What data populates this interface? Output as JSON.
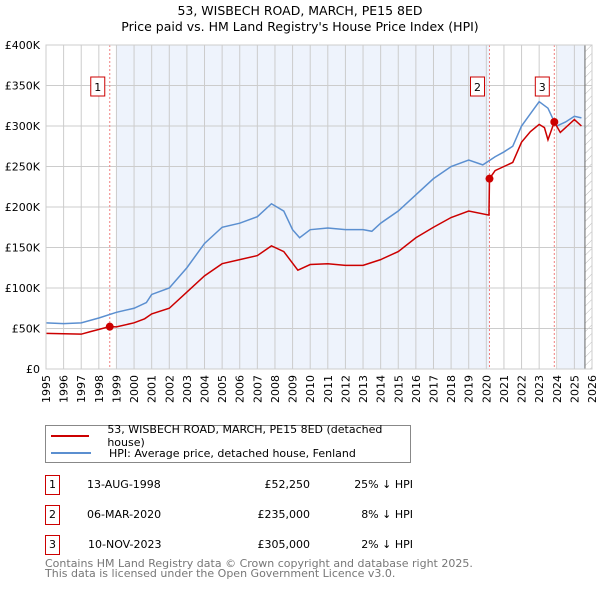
{
  "chart_data": {
    "type": "line",
    "title": "53, WISBECH ROAD, MARCH, PE15 8ED",
    "subtitle": "Price paid vs. HM Land Registry's House Price Index (HPI)",
    "xlim": [
      1995,
      2026
    ],
    "ylim": [
      0,
      400000
    ],
    "x_ticks": [
      "1995",
      "1996",
      "1997",
      "1998",
      "1999",
      "2000",
      "2001",
      "2002",
      "2003",
      "2004",
      "2005",
      "2006",
      "2007",
      "2008",
      "2009",
      "2010",
      "2011",
      "2012",
      "2013",
      "2014",
      "2015",
      "2016",
      "2017",
      "2018",
      "2019",
      "2020",
      "2021",
      "2022",
      "2023",
      "2024",
      "2025",
      "2026"
    ],
    "y_ticks": [
      {
        "v": 0,
        "label": "£0"
      },
      {
        "v": 50000,
        "label": "£50K"
      },
      {
        "v": 100000,
        "label": "£100K"
      },
      {
        "v": 150000,
        "label": "£150K"
      },
      {
        "v": 200000,
        "label": "£200K"
      },
      {
        "v": 250000,
        "label": "£250K"
      },
      {
        "v": 300000,
        "label": "£300K"
      },
      {
        "v": 350000,
        "label": "£350K"
      },
      {
        "v": 400000,
        "label": "£400K"
      }
    ],
    "series": [
      {
        "name": "53, WISBECH ROAD, MARCH, PE15 8ED (detached house)",
        "color": "#cc0000",
        "x": [
          1995,
          1996,
          1997,
          1997.5,
          1998.6,
          1999,
          2000,
          2000.6,
          2001,
          2002,
          2003,
          2004,
          2005,
          2006,
          2007,
          2007.8,
          2008.5,
          2009.3,
          2010,
          2011,
          2012,
          2013,
          2014,
          2015,
          2016,
          2017,
          2018,
          2019,
          2020.15,
          2020.18,
          2020.5,
          2021,
          2021.5,
          2022,
          2022.5,
          2023,
          2023.3,
          2023.5,
          2023.86,
          2024.2,
          2024.6,
          2025,
          2025.4
        ],
        "y": [
          44000,
          43500,
          43000,
          46000,
          52250,
          52000,
          57000,
          62000,
          68000,
          75000,
          95000,
          115000,
          130000,
          135000,
          140000,
          152000,
          145000,
          122000,
          129000,
          130000,
          128000,
          128000,
          135000,
          145000,
          162000,
          175000,
          187000,
          195000,
          190000,
          235000,
          245000,
          250000,
          255000,
          280000,
          293000,
          302000,
          298000,
          283000,
          305000,
          292000,
          300000,
          308000,
          300000
        ]
      },
      {
        "name": "HPI: Average price, detached house, Fenland",
        "color": "#5b8fd0",
        "x": [
          1995,
          1996,
          1997,
          1998,
          1999,
          2000,
          2000.7,
          2001,
          2002,
          2003,
          2004,
          2005,
          2006,
          2007,
          2007.8,
          2008.5,
          2009,
          2009.4,
          2010,
          2011,
          2012,
          2013,
          2013.5,
          2014,
          2015,
          2016,
          2017,
          2018,
          2019,
          2019.8,
          2020.5,
          2021,
          2021.5,
          2022,
          2022.5,
          2023,
          2023.5,
          2023.8,
          2024,
          2024.5,
          2025,
          2025.4
        ],
        "y": [
          57000,
          56000,
          57000,
          63000,
          70000,
          75000,
          82000,
          92000,
          100000,
          125000,
          155000,
          175000,
          180000,
          188000,
          204000,
          195000,
          172000,
          162000,
          172000,
          174000,
          172000,
          172000,
          170000,
          180000,
          195000,
          215000,
          235000,
          250000,
          258000,
          252000,
          262000,
          268000,
          275000,
          300000,
          315000,
          330000,
          322000,
          308000,
          300000,
          305000,
          312000,
          310000
        ]
      }
    ],
    "sales": [
      {
        "n": "1",
        "x": 1998.62,
        "y": 52250,
        "date": "13-AUG-1998",
        "price": "£52,250",
        "hpi": "25% ↓ HPI"
      },
      {
        "n": "2",
        "x": 2020.18,
        "y": 235000,
        "date": "06-MAR-2020",
        "price": "£235,000",
        "hpi": "8% ↓ HPI"
      },
      {
        "n": "3",
        "x": 2023.86,
        "y": 305000,
        "date": "10-NOV-2023",
        "price": "£305,000",
        "hpi": "2% ↓ HPI"
      }
    ],
    "legend": "bottom"
  },
  "footer": {
    "line1": "Contains HM Land Registry data © Crown copyright and database right 2025.",
    "line2": "This data is licensed under the Open Government Licence v3.0."
  }
}
